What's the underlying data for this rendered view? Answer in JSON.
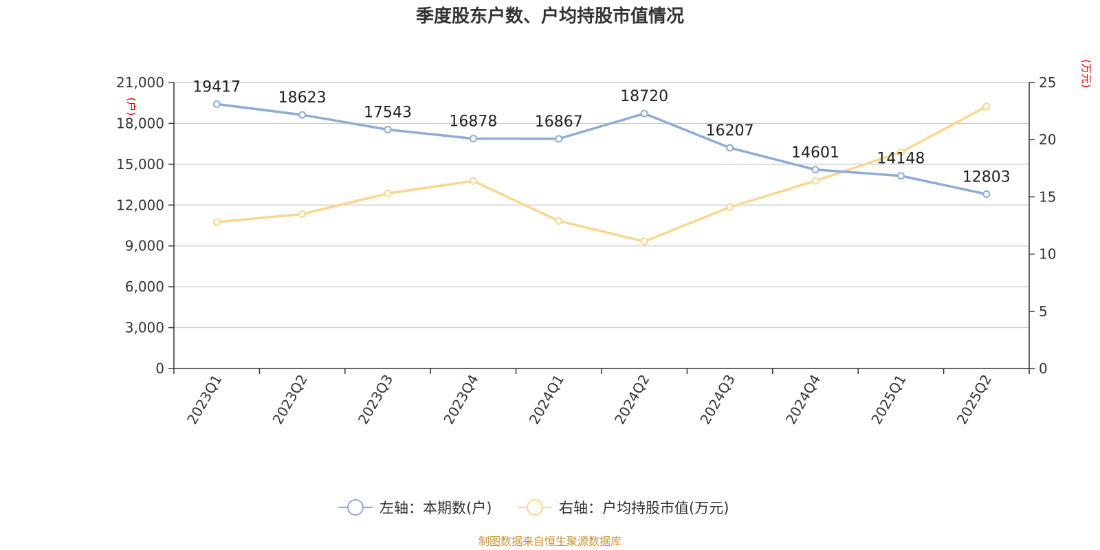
{
  "chart_data": {
    "type": "line",
    "title": "季度股东户数、户均持股市值情况",
    "categories": [
      "2023Q1",
      "2023Q2",
      "2023Q3",
      "2023Q4",
      "2024Q1",
      "2024Q2",
      "2024Q3",
      "2024Q4",
      "2025Q1",
      "2025Q2"
    ],
    "left_axis": {
      "unit": "(户)",
      "ylim": [
        0,
        21000
      ],
      "ticks": [
        0,
        3000,
        6000,
        9000,
        12000,
        15000,
        18000,
        21000
      ],
      "tick_labels": [
        "0",
        "3,000",
        "6,000",
        "9,000",
        "12,000",
        "15,000",
        "18,000",
        "21,000"
      ]
    },
    "right_axis": {
      "unit": "(万元)",
      "ylim": [
        0,
        25
      ],
      "ticks": [
        0,
        5,
        10,
        15,
        20,
        25
      ],
      "tick_labels": [
        "0",
        "5",
        "10",
        "15",
        "20",
        "25"
      ]
    },
    "series": [
      {
        "name": "左轴：本期数(户)",
        "axis": "left",
        "color": "#8eabd8",
        "values": [
          19417,
          18623,
          17543,
          16878,
          16867,
          18720,
          16207,
          14601,
          14148,
          12803
        ],
        "labels": [
          "19417",
          "18623",
          "17543",
          "16878",
          "16867",
          "18720",
          "16207",
          "14601",
          "14148",
          "12803"
        ]
      },
      {
        "name": "右轴：户均持股市值(万元)",
        "axis": "right",
        "color": "#fbd68e",
        "values": [
          12.8,
          13.5,
          15.3,
          16.4,
          12.9,
          11.1,
          14.1,
          16.4,
          18.9,
          22.9
        ]
      }
    ],
    "grid": true,
    "legend_position": "bottom-center"
  },
  "source": "制图数据来自恒生聚源数据库"
}
